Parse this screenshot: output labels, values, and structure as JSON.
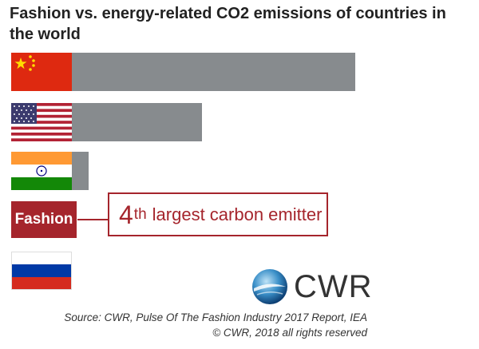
{
  "title": "Fashion vs. energy-related CO2 emissions of countries in the world",
  "icons": {
    "china": "china-flag-icon",
    "usa": "usa-flag-icon",
    "india": "india-flag-icon",
    "russia": "russia-flag-icon",
    "logo": "cwr-globe-icon"
  },
  "colors": {
    "bar": "#878b8e",
    "fashion": "#a5252c",
    "text": "#222222"
  },
  "chart_data": {
    "type": "bar",
    "orientation": "horizontal",
    "title": "Fashion vs. energy-related CO2 emissions of countries in the world",
    "categories": [
      "China",
      "United States",
      "India",
      "Fashion",
      "Russia"
    ],
    "values": [
      100,
      46,
      6,
      0,
      0
    ],
    "xlabel": "",
    "ylabel": "",
    "grid": false
  },
  "fashion_label": "Fashion",
  "callout": {
    "number": "4",
    "suffix": "th",
    "text": "largest carbon emitter"
  },
  "logo_text": "CWR",
  "source_line1": "Source: CWR, Pulse Of The Fashion Industry 2017 Report, IEA",
  "source_line2": "© CWR, 2018 all rights reserved"
}
